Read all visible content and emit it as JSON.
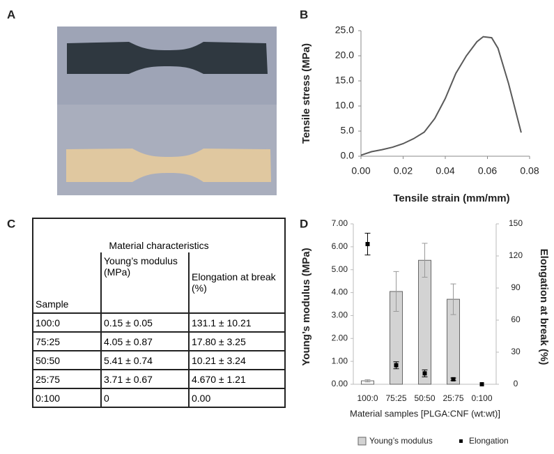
{
  "panel_labels": [
    "A",
    "B",
    "C",
    "D"
  ],
  "chart_data": [
    {
      "type": "line",
      "xlabel": "Tensile strain (mm/mm)",
      "ylabel": "Tensile stress (MPa)",
      "color": "#595959",
      "x": [
        0,
        0.005,
        0.01,
        0.015,
        0.02,
        0.025,
        0.03,
        0.035,
        0.04,
        0.045,
        0.05,
        0.055,
        0.058,
        0.062,
        0.065,
        0.07,
        0.076
      ],
      "values": [
        0.2,
        0.9,
        1.3,
        1.8,
        2.5,
        3.5,
        4.8,
        7.5,
        11.5,
        16.5,
        20,
        22.8,
        23.8,
        23.6,
        21.5,
        14.5,
        4.7
      ],
      "xlim": [
        0,
        0.08
      ],
      "xticks": [
        {
          "value": 0,
          "label": "0.00"
        },
        {
          "value": 0.02,
          "label": "0.02"
        },
        {
          "value": 0.04,
          "label": "0.04"
        },
        {
          "value": 0.06,
          "label": "0.06"
        },
        {
          "value": 0.08,
          "label": "0.08"
        }
      ],
      "ylim": [
        0,
        25
      ],
      "yticks": [
        {
          "value": 0,
          "label": "0.0"
        },
        {
          "value": 5,
          "label": "5.0"
        },
        {
          "value": 10,
          "label": "10.0"
        },
        {
          "value": 15,
          "label": "15.0"
        },
        {
          "value": 20,
          "label": "20.0"
        },
        {
          "value": 25,
          "label": "25.0"
        }
      ]
    },
    {
      "type": "bar",
      "xlabel": "Material samples [PLGA:CNF (wt:wt)]",
      "ylabel": "Young’s modulus (MPa)",
      "y2label": "Elongation at break (%)",
      "categories": [
        "100:0",
        "75:25",
        "50:50",
        "25:75",
        "0:100"
      ],
      "series": [
        {
          "name": "Young’s modulus",
          "color": "#d3d3d3",
          "colors": [
            "#ffffff",
            "#d3d3d3",
            "#d3d3d3",
            "#d3d3d3",
            "#d3d3d3"
          ],
          "values": [
            0.15,
            4.05,
            5.41,
            3.71,
            0
          ],
          "errors": [
            0.05,
            0.87,
            0.74,
            0.67,
            null
          ]
        },
        {
          "name": "Elongation",
          "color": "#000000",
          "axis": "y2",
          "values": [
            131.1,
            17.8,
            10.21,
            4.67,
            0
          ],
          "errors": [
            10.21,
            3.25,
            3.24,
            1.21,
            null
          ]
        }
      ],
      "ylim": [
        0,
        7
      ],
      "yticks": [
        {
          "value": 0,
          "label": "0.00"
        },
        {
          "value": 1,
          "label": "1.00"
        },
        {
          "value": 2,
          "label": "2.00"
        },
        {
          "value": 3,
          "label": "3.00"
        },
        {
          "value": 4,
          "label": "4.00"
        },
        {
          "value": 5,
          "label": "5.00"
        },
        {
          "value": 6,
          "label": "6.00"
        },
        {
          "value": 7,
          "label": "7.00"
        }
      ],
      "y2lim": [
        0,
        150
      ],
      "y2ticks": [
        0,
        30,
        60,
        90,
        120,
        150
      ]
    }
  ],
  "table": {
    "title": "Material characteristics",
    "header": [
      "Sample",
      "Young’s modulus (MPa)",
      "Elongation at break (%)"
    ],
    "rows": [
      [
        "100:0",
        "0.15 ± 0.05",
        "131.1 ± 10.21"
      ],
      [
        "75:25",
        "4.05 ± 0.87",
        "17.80 ± 3.25"
      ],
      [
        "50:50",
        "5.41 ± 0.74",
        "10.21 ± 3.24"
      ],
      [
        "25:75",
        "3.71 ± 0.67",
        "4.670 ± 1.21"
      ],
      [
        "0:100",
        "0",
        "0.00"
      ]
    ]
  }
}
